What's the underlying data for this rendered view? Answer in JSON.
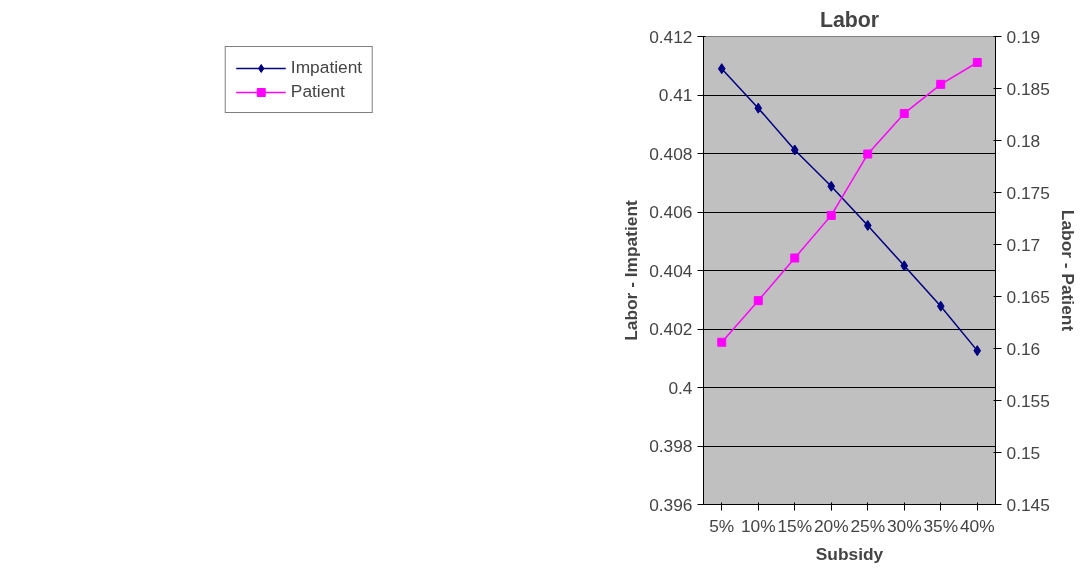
{
  "chart_data": {
    "type": "line",
    "title": "Labor",
    "xlabel": "Subsidy",
    "ylabel": "Labor - Impatient",
    "y2label": "Labor - Patient",
    "categories": [
      "5%",
      "10%",
      "15%",
      "20%",
      "25%",
      "30%",
      "35%",
      "40%"
    ],
    "series": [
      {
        "name": "Impatient",
        "color": "#000080",
        "marker": "diamond",
        "values": [
          0.4109,
          0.40955,
          0.40812,
          0.40688,
          0.40554,
          0.40416,
          0.40278,
          0.40126
        ]
      },
      {
        "name": "Patient",
        "color": "#ff00ff",
        "marker": "square",
        "axis": "y2",
        "values": [
          0.1606,
          0.1646,
          0.1687,
          0.1728,
          0.1787,
          0.1826,
          0.1854,
          0.1875
        ]
      }
    ],
    "ylim": [
      0.396,
      0.412
    ],
    "yticks": [
      0.396,
      0.398,
      0.4,
      0.402,
      0.404,
      0.406,
      0.408,
      0.41,
      0.412
    ],
    "y2lim": [
      0.145,
      0.19
    ],
    "y2ticks": [
      0.145,
      0.15,
      0.155,
      0.16,
      0.165,
      0.17,
      0.175,
      0.18,
      0.185,
      0.19
    ],
    "grid": "y",
    "legend": "left",
    "line_style": "solid"
  }
}
